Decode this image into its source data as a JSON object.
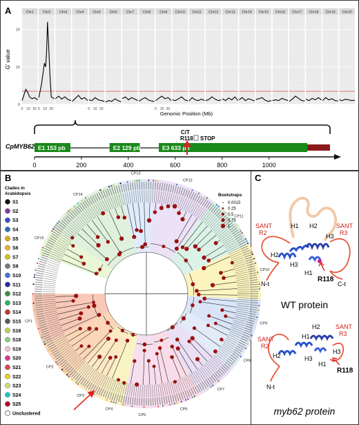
{
  "panels": {
    "a": {
      "label": "A",
      "gene_name": "CpMYB62",
      "mutation": {
        "allele": "C/T",
        "residue": "R118",
        "result": "STOP"
      },
      "exons": [
        {
          "label": "E1  153 pb",
          "start": 0,
          "end": 153
        },
        {
          "label": "E2  129 pb",
          "start": 320,
          "end": 449
        },
        {
          "label": "E3  633 pb",
          "start": 530,
          "end": 1163
        }
      ],
      "utr_end": 1260,
      "gene_axis": {
        "min": 0,
        "max": 1260,
        "ticks": [
          "0",
          "200",
          "400",
          "600",
          "800",
          "1000"
        ]
      }
    },
    "b": {
      "label": "B",
      "legend_title_line1": "Clades in",
      "legend_title_line2": "Arabidopsis",
      "unclustered_label": "Unclustered",
      "bootstrap_title": "Bootstraps",
      "bootstrap_values": [
        "0.0015",
        "0.25",
        "0.5",
        "0.75",
        "1"
      ],
      "clades": [
        {
          "name": "S1",
          "color": "#111111"
        },
        {
          "name": "S2",
          "color": "#7b3fa0"
        },
        {
          "name": "S3",
          "color": "#3b4fc4"
        },
        {
          "name": "S4",
          "color": "#2e6fb7"
        },
        {
          "name": "S5",
          "color": "#e0a81c"
        },
        {
          "name": "S6",
          "color": "#e6b23a"
        },
        {
          "name": "S7",
          "color": "#d9c21c"
        },
        {
          "name": "S9",
          "color": "#7a7a7a"
        },
        {
          "name": "S10",
          "color": "#4f6fe3"
        },
        {
          "name": "S11",
          "color": "#2a2aa8"
        },
        {
          "name": "S12",
          "color": "#3d8f3d"
        },
        {
          "name": "S13",
          "color": "#2fb45a"
        },
        {
          "name": "S14",
          "color": "#c0392b"
        },
        {
          "name": "S15",
          "color": "#5a5a5a"
        },
        {
          "name": "S16",
          "color": "#b9d45a"
        },
        {
          "name": "S18",
          "color": "#8fd17a"
        },
        {
          "name": "S19",
          "color": "#f2c4d8"
        },
        {
          "name": "S20",
          "color": "#d63c8f"
        },
        {
          "name": "S21",
          "color": "#e04a4a"
        },
        {
          "name": "S22",
          "color": "#f0d020"
        },
        {
          "name": "S23",
          "color": "#c8e27a"
        },
        {
          "name": "S24",
          "color": "#20c8c8"
        },
        {
          "name": "S25",
          "color": "#b01020"
        }
      ],
      "clusters": [
        {
          "name": "CP1",
          "color": "#f6b7a0",
          "a0": 180,
          "a1": 206
        },
        {
          "name": "CP2",
          "color": "#f9c9a0",
          "a0": 206,
          "a1": 228
        },
        {
          "name": "CP3",
          "color": "#fbe2b0",
          "a0": 228,
          "a1": 246
        },
        {
          "name": "CP4",
          "color": "#f8efb0",
          "a0": 246,
          "a1": 258
        },
        {
          "name": "CP5",
          "color": "#f3d4e8",
          "a0": 258,
          "a1": 278
        },
        {
          "name": "CP6",
          "color": "#f7d0e0",
          "a0": 278,
          "a1": 298
        },
        {
          "name": "CP7",
          "color": "#e2d6f2",
          "a0": 298,
          "a1": 318
        },
        {
          "name": "CP8",
          "color": "#d8e4f6",
          "a0": 318,
          "a1": 335
        },
        {
          "name": "CP9",
          "color": "#ccdcf4",
          "a0": 335,
          "a1": 357
        },
        {
          "name": "CP10",
          "color": "#fbf0a8",
          "a0": 357,
          "a1": 386
        },
        {
          "name": "CP11",
          "color": "#cfeee0",
          "a0": 26,
          "a1": 54
        },
        {
          "name": "CP12",
          "color": "#e5d8f4",
          "a0": 54,
          "a1": 86
        },
        {
          "name": "CP13",
          "color": "#d6e6fa",
          "a0": 86,
          "a1": 104
        },
        {
          "name": "CP14",
          "color": "#d4ecd0",
          "a0": 104,
          "a1": 145
        },
        {
          "name": "CP15",
          "color": "#e2f4c8",
          "a0": 145,
          "a1": 160
        }
      ]
    },
    "c": {
      "label": "C",
      "wt": {
        "caption": "WT protein",
        "sant_r2_line1": "SANT",
        "sant_r2_line2": "R2",
        "sant_r3_line1": "SANT",
        "sant_r3_line2": "R3",
        "helices": [
          "H1",
          "H2",
          "H2",
          "H3",
          "H3",
          "H1"
        ],
        "n_term": "N-t",
        "c_term": "C-t",
        "residue": "R118"
      },
      "mut": {
        "caption": "myb62 protein",
        "sant_r2_line1": "SANT",
        "sant_r2_line2": "R2",
        "sant_r3_line1": "SANT",
        "sant_r3_line2": "R3",
        "helices": [
          "H2",
          "H1",
          "H2",
          "H3",
          "H3",
          "H1"
        ],
        "n_term": "N-t",
        "residue": "R118"
      }
    }
  },
  "chart_data": {
    "type": "line",
    "title": "",
    "xlabel": "Genomic Position (Mb)",
    "ylabel": "G' value",
    "ylim": [
      0,
      24
    ],
    "yticks": [
      "0",
      "10",
      "20"
    ],
    "xticks_per_facet": [
      "0",
      "10",
      "20"
    ],
    "threshold": 3.5,
    "threshold_color": "#e06060",
    "grid": true,
    "facets": [
      {
        "name": "Chr1",
        "x": [
          0,
          3,
          6,
          9,
          12,
          16,
          20,
          25
        ],
        "y": [
          1.0,
          2.5,
          4.0,
          3.2,
          2.0,
          1.5,
          1.8,
          1.2
        ]
      },
      {
        "name": "Chr2",
        "x": [
          0,
          4,
          7,
          9,
          11,
          12.5,
          14,
          16,
          18,
          20,
          25
        ],
        "y": [
          1.8,
          5.0,
          8.5,
          11.0,
          10.0,
          14.0,
          22.0,
          15.0,
          7.5,
          2.0,
          1.5
        ]
      },
      {
        "name": "Chr3",
        "x": [
          0,
          5,
          10,
          15,
          20,
          25
        ],
        "y": [
          1.5,
          2.2,
          1.4,
          2.0,
          1.3,
          1.0
        ]
      },
      {
        "name": "Chr4",
        "x": [
          0,
          5,
          10,
          15,
          20,
          25
        ],
        "y": [
          0.8,
          1.6,
          2.4,
          1.4,
          1.8,
          1.0
        ]
      },
      {
        "name": "Chr5",
        "x": [
          0,
          5,
          10,
          15,
          20,
          25
        ],
        "y": [
          1.2,
          1.0,
          1.8,
          1.2,
          1.0,
          0.8
        ]
      },
      {
        "name": "Chr6",
        "x": [
          0,
          5,
          10,
          15,
          20,
          25
        ],
        "y": [
          0.6,
          1.0,
          0.8,
          1.5,
          1.0,
          0.7
        ]
      },
      {
        "name": "Chr7",
        "x": [
          0,
          5,
          10,
          15,
          20,
          25
        ],
        "y": [
          1.5,
          2.0,
          1.2,
          1.8,
          1.4,
          1.0
        ]
      },
      {
        "name": "Chr8",
        "x": [
          0,
          5,
          10,
          15,
          20,
          25
        ],
        "y": [
          0.8,
          1.4,
          1.8,
          1.2,
          0.9,
          0.8
        ]
      },
      {
        "name": "Chr9",
        "x": [
          0,
          5,
          10,
          15,
          20,
          25
        ],
        "y": [
          1.0,
          1.6,
          2.2,
          1.5,
          1.8,
          1.0
        ]
      },
      {
        "name": "Chr10",
        "x": [
          0,
          5,
          10,
          15,
          20,
          25
        ],
        "y": [
          1.2,
          1.0,
          1.5,
          2.0,
          1.2,
          0.9
        ]
      },
      {
        "name": "Chr11",
        "x": [
          0,
          5,
          10,
          15,
          20,
          25
        ],
        "y": [
          0.9,
          1.8,
          1.2,
          1.0,
          1.4,
          1.0
        ]
      },
      {
        "name": "Chr12",
        "x": [
          0,
          5,
          10,
          15,
          20,
          25
        ],
        "y": [
          1.0,
          1.3,
          2.0,
          1.4,
          1.0,
          1.2
        ]
      },
      {
        "name": "Chr13",
        "x": [
          0,
          5,
          10,
          15,
          20,
          25
        ],
        "y": [
          1.5,
          1.0,
          1.7,
          1.2,
          2.0,
          1.0
        ]
      },
      {
        "name": "Chr14",
        "x": [
          0,
          5,
          10,
          15,
          20,
          25
        ],
        "y": [
          1.2,
          1.8,
          1.0,
          1.5,
          1.2,
          0.9
        ]
      },
      {
        "name": "Chr15",
        "x": [
          0,
          5,
          10,
          15,
          20,
          25
        ],
        "y": [
          1.3,
          1.5,
          1.8,
          1.1,
          0.8,
          1.0
        ]
      },
      {
        "name": "Chr16",
        "x": [
          0,
          5,
          10,
          15,
          20,
          25
        ],
        "y": [
          1.0,
          1.2,
          1.0,
          1.6,
          1.3,
          1.0
        ]
      },
      {
        "name": "Chr17",
        "x": [
          0,
          5,
          10,
          15,
          20,
          25
        ],
        "y": [
          0.8,
          1.4,
          2.2,
          1.6,
          1.0,
          0.9
        ]
      },
      {
        "name": "Chr18",
        "x": [
          0,
          5,
          10,
          15,
          20,
          25
        ],
        "y": [
          1.4,
          1.0,
          1.6,
          1.2,
          1.8,
          1.2
        ]
      },
      {
        "name": "Chr19",
        "x": [
          0,
          5,
          10,
          15,
          20,
          25
        ],
        "y": [
          1.0,
          1.8,
          1.2,
          1.5,
          1.0,
          0.9
        ]
      },
      {
        "name": "Chr20",
        "x": [
          0,
          5,
          10,
          15,
          20,
          25
        ],
        "y": [
          1.2,
          1.0,
          1.4,
          1.2,
          1.0,
          1.1
        ]
      }
    ]
  }
}
